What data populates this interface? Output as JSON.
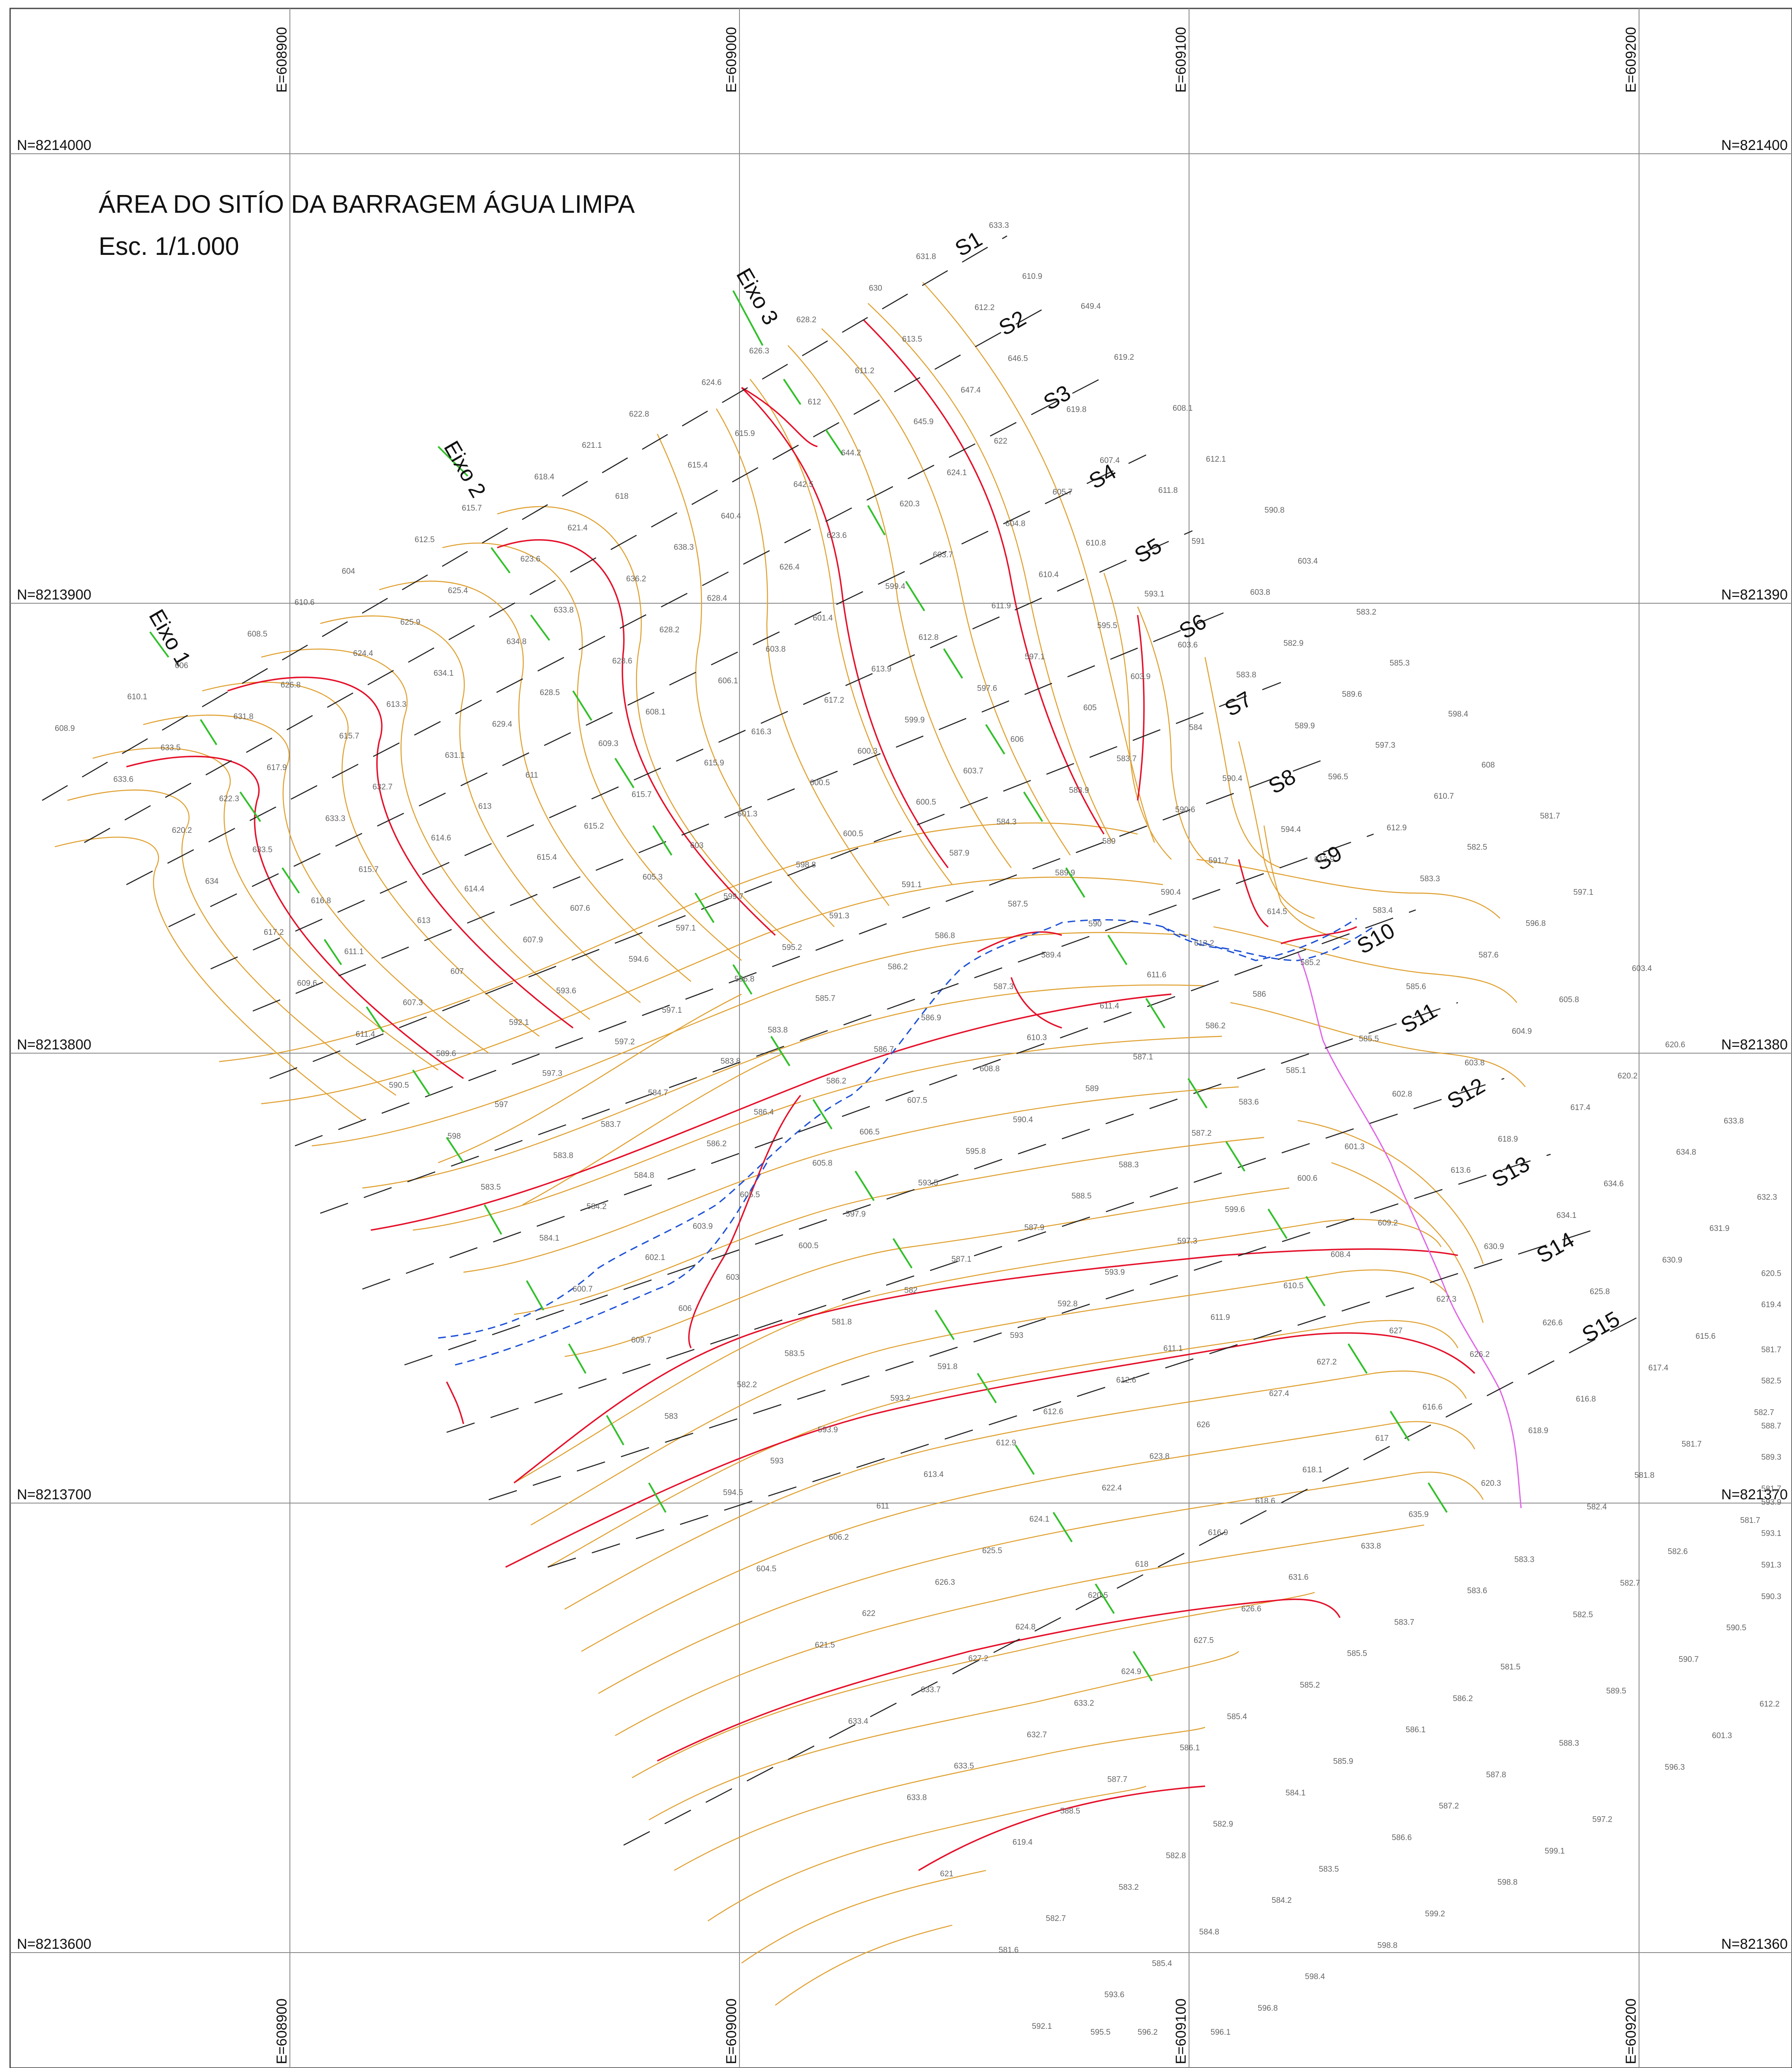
{
  "map": {
    "title": "ÁREA DO SITÍO DA BARRAGEM ÁGUA LIMPA",
    "scale": "Esc. 1/1.000",
    "grid": {
      "eastings": [
        "E=608900",
        "E=609000",
        "E=609100",
        "E=609200"
      ],
      "northings": [
        "N=8214000",
        "N=8213900",
        "N=8213800",
        "N=8213700",
        "N=8213600"
      ],
      "northings_right": [
        "N=821400",
        "N=821390",
        "N=821380",
        "N=821370",
        "N=821360"
      ]
    },
    "sections": [
      "S1",
      "S2",
      "S3",
      "S4",
      "S5",
      "S6",
      "S7",
      "S8",
      "S9",
      "S10",
      "S11",
      "S12",
      "S13",
      "S14",
      "S15"
    ],
    "axes": [
      "Eixo 1",
      "Eixo 2",
      "Eixo 3"
    ],
    "elevation_labels": [
      "608.9",
      "610.1",
      "606",
      "608.5",
      "610.6",
      "604",
      "612.5",
      "615.7",
      "618.4",
      "621.1",
      "622.8",
      "624.6",
      "626.3",
      "628.2",
      "630",
      "631.8",
      "633.3",
      "633.6",
      "633.5",
      "631.8",
      "626.8",
      "624.4",
      "625.9",
      "625.4",
      "623.6",
      "621.4",
      "618",
      "615.4",
      "615.9",
      "612",
      "611.2",
      "613.5",
      "612.2",
      "610.9",
      "620.2",
      "622.3",
      "617.9",
      "615.7",
      "613.3",
      "634.1",
      "634.8",
      "633.8",
      "636.2",
      "638.3",
      "640.4",
      "642.5",
      "644.2",
      "645.9",
      "647.4",
      "646.5",
      "649.4",
      "634",
      "633.5",
      "633.3",
      "632.7",
      "631.1",
      "629.4",
      "628.5",
      "628.6",
      "628.2",
      "628.4",
      "626.4",
      "623.6",
      "620.3",
      "624.1",
      "622",
      "619.8",
      "619.2",
      "617.2",
      "616.8",
      "615.7",
      "614.6",
      "613",
      "611",
      "609.3",
      "608.1",
      "606.1",
      "603.8",
      "601.4",
      "599.4",
      "603.7",
      "604.8",
      "605.7",
      "607.4",
      "608.1",
      "609.6",
      "611.1",
      "613",
      "614.4",
      "615.4",
      "615.2",
      "615.7",
      "615.9",
      "616.3",
      "617.2",
      "613.9",
      "612.8",
      "611.9",
      "610.4",
      "610.8",
      "611.8",
      "612.1",
      "611.4",
      "607.3",
      "607",
      "607.9",
      "607.6",
      "605.3",
      "603",
      "601.3",
      "600.5",
      "600.3",
      "599.9",
      "597.6",
      "597.1",
      "595.5",
      "593.1",
      "591",
      "590.8",
      "590.5",
      "589.6",
      "592.1",
      "593.6",
      "594.6",
      "597.1",
      "599.7",
      "598.8",
      "600.5",
      "600.5",
      "603.7",
      "606",
      "605",
      "603.9",
      "603.6",
      "603.8",
      "603.4",
      "598",
      "597",
      "597.3",
      "597.2",
      "597.1",
      "596.8",
      "595.2",
      "591.3",
      "591.1",
      "587.9",
      "584.3",
      "583.9",
      "583.7",
      "584",
      "583.8",
      "582.9",
      "583.2",
      "583.5",
      "583.8",
      "583.7",
      "584.7",
      "583.8",
      "583.8",
      "585.7",
      "586.2",
      "586.8",
      "587.5",
      "589.9",
      "589",
      "590.6",
      "590.4",
      "589.9",
      "589.6",
      "585.3",
      "584.1",
      "584.2",
      "584.8",
      "586.2",
      "586.4",
      "586.2",
      "586.7",
      "586.9",
      "587.3",
      "589.4",
      "590",
      "590.4",
      "591.7",
      "594.4",
      "596.5",
      "597.3",
      "598.4",
      "600.7",
      "602.1",
      "603.9",
      "605.5",
      "605.8",
      "606.5",
      "607.5",
      "608.8",
      "610.3",
      "611.4",
      "611.6",
      "613.2",
      "614.5",
      "613.9",
      "612.9",
      "610.7",
      "608",
      "609.7",
      "606",
      "603",
      "600.5",
      "597.9",
      "593.5",
      "595.8",
      "590.4",
      "589",
      "587.1",
      "586.2",
      "586",
      "585.2",
      "583.4",
      "583.3",
      "582.5",
      "581.7",
      "583",
      "582.2",
      "583.5",
      "581.8",
      "582",
      "587.1",
      "587.9",
      "588.5",
      "588.3",
      "587.2",
      "583.6",
      "585.1",
      "585.5",
      "585.6",
      "587.6",
      "596.8",
      "597.1",
      "594.5",
      "593",
      "593.9",
      "593.2",
      "591.8",
      "593",
      "592.8",
      "593.9",
      "597.3",
      "599.6",
      "600.6",
      "601.3",
      "602.8",
      "603.8",
      "604.9",
      "605.8",
      "603.4",
      "604.5",
      "606.2",
      "611",
      "613.4",
      "612.9",
      "612.6",
      "612.6",
      "611.1",
      "611.9",
      "610.5",
      "608.4",
      "609.2",
      "613.6",
      "618.9",
      "617.4",
      "620.2",
      "620.6",
      "621.5",
      "622",
      "626.3",
      "625.5",
      "624.1",
      "622.4",
      "623.8",
      "626",
      "627.4",
      "627.2",
      "627",
      "627.3",
      "630.9",
      "634.1",
      "634.6",
      "634.8",
      "633.8",
      "633.4",
      "633.7",
      "627.2",
      "624.8",
      "620.5",
      "618",
      "616.9",
      "618.6",
      "618.1",
      "617",
      "616.6",
      "626.2",
      "626.6",
      "625.8",
      "630.9",
      "631.9",
      "632.3",
      "633.8",
      "633.5",
      "632.7",
      "633.2",
      "624.9",
      "627.5",
      "626.6",
      "631.6",
      "633.8",
      "635.9",
      "620.3",
      "618.9",
      "616.8",
      "617.4",
      "615.6",
      "619.4",
      "620.5",
      "621",
      "619.4",
      "588.5",
      "587.7",
      "586.1",
      "585.4",
      "585.2",
      "585.5",
      "583.7",
      "583.6",
      "583.3",
      "582.4",
      "581.8",
      "581.7",
      "582.7",
      "582.5",
      "581.7",
      "581.6",
      "582.7",
      "583.2",
      "582.8",
      "582.9",
      "584.1",
      "585.9",
      "586.1",
      "586.2",
      "581.5",
      "582.5",
      "582.7",
      "582.6",
      "581.7",
      "581.7",
      "589.3",
      "588.7",
      "592.1",
      "593.6",
      "585.4",
      "584.8",
      "584.2",
      "583.5",
      "586.6",
      "587.2",
      "587.8",
      "588.3",
      "589.5",
      "590.7",
      "590.5",
      "590.3",
      "591.3",
      "593.1",
      "593.9",
      "595.5",
      "596.2",
      "596.1",
      "596.8",
      "598.4",
      "598.8",
      "599.2",
      "598.8",
      "599.1",
      "597.2",
      "596.3",
      "601.3",
      "612.2"
    ]
  }
}
